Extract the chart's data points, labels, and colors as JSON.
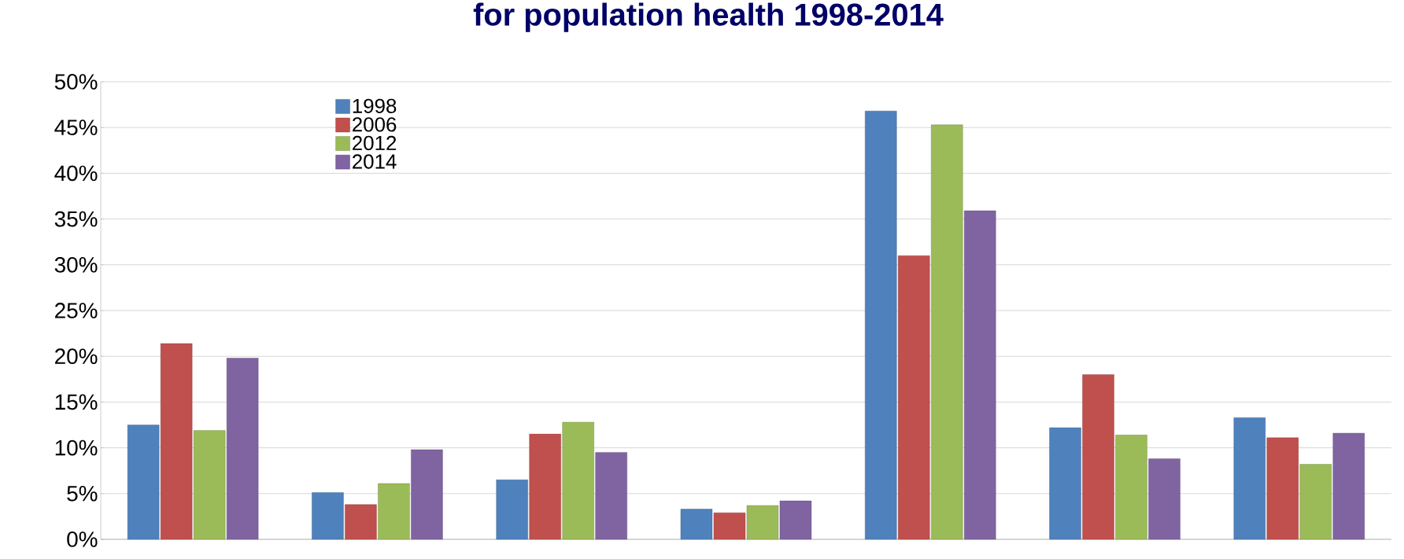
{
  "chart_data": {
    "type": "bar",
    "title": "for population health 1998-2014",
    "categories": [
      null,
      null,
      null,
      null,
      null,
      null,
      null
    ],
    "series": [
      {
        "name": "1998",
        "color": "#4f81bd",
        "values": [
          12.5,
          5.1,
          6.5,
          3.3,
          46.8,
          12.2,
          13.3
        ]
      },
      {
        "name": "2006",
        "color": "#c0504d",
        "values": [
          21.4,
          3.8,
          11.5,
          2.9,
          31.0,
          18.0,
          11.1
        ]
      },
      {
        "name": "2012",
        "color": "#9bbb59",
        "values": [
          11.9,
          6.1,
          12.8,
          3.7,
          45.3,
          11.4,
          8.2
        ]
      },
      {
        "name": "2014",
        "color": "#8064a2",
        "values": [
          19.8,
          9.8,
          9.5,
          4.2,
          35.9,
          8.8,
          11.6
        ]
      }
    ],
    "ylim": [
      0,
      50
    ],
    "yticks": [
      {
        "value": 0,
        "label": "0%"
      },
      {
        "value": 5,
        "label": "5%"
      },
      {
        "value": 10,
        "label": "10%"
      },
      {
        "value": 15,
        "label": "15%"
      },
      {
        "value": 20,
        "label": "20%"
      },
      {
        "value": 25,
        "label": "25%"
      },
      {
        "value": 30,
        "label": "30%"
      },
      {
        "value": 35,
        "label": "35%"
      },
      {
        "value": 40,
        "label": "40%"
      },
      {
        "value": 45,
        "label": "45%"
      },
      {
        "value": 50,
        "label": "50%"
      }
    ],
    "grid": "y",
    "legend": "top left"
  }
}
